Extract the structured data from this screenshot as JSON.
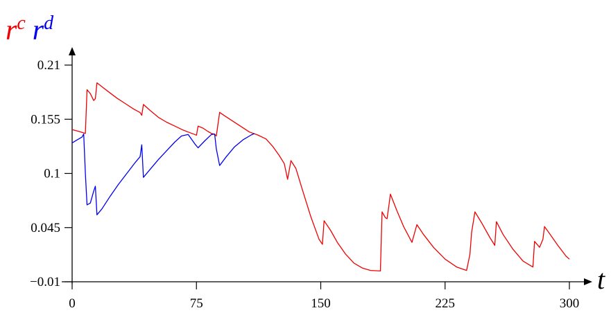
{
  "colors": {
    "rc": "#ee0000",
    "rd": "#0000ee",
    "axis": "#000000"
  },
  "chart_data": {
    "type": "line",
    "title": "",
    "xlabel": "t",
    "ylabel_parts": [
      {
        "base": "r",
        "sup": "c",
        "color": "#ee0000"
      },
      {
        "base": "r",
        "sup": "d",
        "color": "#0000ee"
      }
    ],
    "xlim": [
      0,
      300
    ],
    "ylim": [
      -0.01,
      0.21
    ],
    "x_ticks": [
      0,
      75,
      150,
      225,
      300
    ],
    "x_tick_labels": [
      "0",
      "75",
      "150",
      "225",
      "300"
    ],
    "y_ticks": [
      -0.01,
      0.045,
      0.1,
      0.155,
      0.21
    ],
    "y_tick_labels": [
      "−0.01",
      "0.045",
      "0.1",
      "0.155",
      "0.21"
    ],
    "grid": false,
    "series": [
      {
        "key": "rc",
        "color": "#ee0000",
        "points": [
          [
            0,
            0.1444
          ],
          [
            4,
            0.1427
          ],
          [
            8,
            0.1406
          ],
          [
            9,
            0.185
          ],
          [
            11,
            0.181
          ],
          [
            13,
            0.174
          ],
          [
            14,
            0.176
          ],
          [
            15,
            0.192
          ],
          [
            18,
            0.188
          ],
          [
            22,
            0.1828
          ],
          [
            27,
            0.1765
          ],
          [
            32,
            0.171
          ],
          [
            37,
            0.1655
          ],
          [
            41,
            0.1618
          ],
          [
            42,
            0.159
          ],
          [
            43,
            0.17
          ],
          [
            47,
            0.164
          ],
          [
            52,
            0.157
          ],
          [
            57,
            0.152
          ],
          [
            62,
            0.148
          ],
          [
            67,
            0.144
          ],
          [
            70,
            0.142
          ],
          [
            74,
            0.1395
          ],
          [
            75,
            0.1388
          ],
          [
            76,
            0.148
          ],
          [
            79,
            0.146
          ],
          [
            82,
            0.1425
          ],
          [
            84,
            0.1406
          ],
          [
            86,
            0.1398
          ],
          [
            87,
            0.138
          ],
          [
            89,
            0.162
          ],
          [
            92,
            0.1585
          ],
          [
            97,
            0.153
          ],
          [
            102,
            0.1475
          ],
          [
            107,
            0.142
          ],
          [
            112,
            0.139
          ],
          [
            117,
            0.135
          ],
          [
            121,
            0.1275
          ],
          [
            125,
            0.118
          ],
          [
            128,
            0.11
          ],
          [
            130,
            0.094
          ],
          [
            132,
            0.113
          ],
          [
            135,
            0.105
          ],
          [
            139,
            0.083
          ],
          [
            144,
            0.056
          ],
          [
            149,
            0.033
          ],
          [
            151,
            0.028
          ],
          [
            152,
            0.052
          ],
          [
            156,
            0.042
          ],
          [
            160,
            0.03
          ],
          [
            165,
            0.018
          ],
          [
            170,
            0.009
          ],
          [
            175,
            0.004
          ],
          [
            180,
            0.0015
          ],
          [
            186,
            0.001
          ],
          [
            187,
            0.061
          ],
          [
            189,
            0.055
          ],
          [
            190,
            0.054
          ],
          [
            191,
            0.066
          ],
          [
            192,
            0.079
          ],
          [
            196,
            0.062
          ],
          [
            200,
            0.046
          ],
          [
            205,
            0.03
          ],
          [
            208,
            0.048
          ],
          [
            212,
            0.038
          ],
          [
            218,
            0.025
          ],
          [
            225,
            0.013
          ],
          [
            232,
            0.005
          ],
          [
            238,
            0.0015
          ],
          [
            240,
            0.018
          ],
          [
            241,
            0.04
          ],
          [
            243,
            0.061
          ],
          [
            247,
            0.05
          ],
          [
            252,
            0.035
          ],
          [
            255,
            0.027
          ],
          [
            256,
            0.051
          ],
          [
            260,
            0.038
          ],
          [
            266,
            0.023
          ],
          [
            272,
            0.011
          ],
          [
            278,
            0.005
          ],
          [
            279,
            0.031
          ],
          [
            282,
            0.025
          ],
          [
            284,
            0.033
          ],
          [
            285,
            0.046
          ],
          [
            288,
            0.039
          ],
          [
            293,
            0.027
          ],
          [
            298,
            0.016
          ],
          [
            300,
            0.013
          ]
        ]
      },
      {
        "key": "rd",
        "color": "#0000ee",
        "points": [
          [
            0,
            0.131
          ],
          [
            3,
            0.134
          ],
          [
            6,
            0.137
          ],
          [
            7,
            0.14
          ],
          [
            8,
            0.1
          ],
          [
            9,
            0.068
          ],
          [
            11,
            0.07
          ],
          [
            13,
            0.082
          ],
          [
            14,
            0.087
          ],
          [
            15,
            0.058
          ],
          [
            18,
            0.064
          ],
          [
            23,
            0.077
          ],
          [
            28,
            0.089
          ],
          [
            33,
            0.1
          ],
          [
            38,
            0.111
          ],
          [
            41,
            0.117
          ],
          [
            42,
            0.129
          ],
          [
            43,
            0.096
          ],
          [
            47,
            0.104
          ],
          [
            52,
            0.114
          ],
          [
            57,
            0.123
          ],
          [
            62,
            0.132
          ],
          [
            66,
            0.138
          ],
          [
            70,
            0.1395
          ],
          [
            74,
            0.13
          ],
          [
            76,
            0.126
          ],
          [
            80,
            0.133
          ],
          [
            84,
            0.1395
          ],
          [
            86,
            0.14
          ],
          [
            87,
            0.125
          ],
          [
            89,
            0.108
          ],
          [
            93,
            0.117
          ],
          [
            98,
            0.127
          ],
          [
            103,
            0.134
          ],
          [
            108,
            0.139
          ],
          [
            110,
            0.1405
          ]
        ]
      }
    ]
  }
}
